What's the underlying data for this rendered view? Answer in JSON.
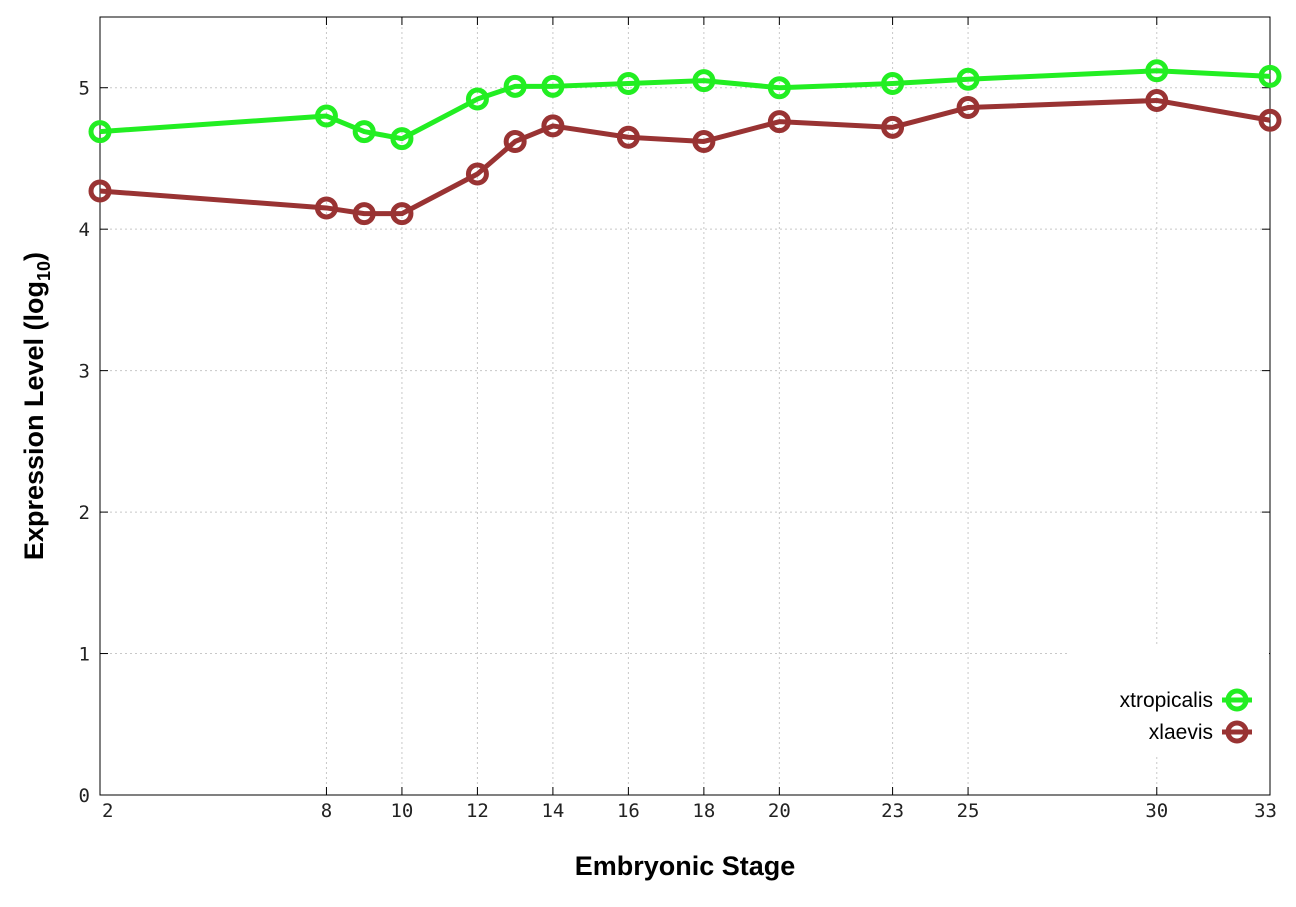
{
  "chart_data": {
    "type": "line",
    "xlabel": "Embryonic Stage",
    "ylabel": {
      "main": "Expression Level (log",
      "subscript": "10",
      "close": ")"
    },
    "x_ticks": [
      2,
      8,
      10,
      12,
      14,
      16,
      18,
      20,
      23,
      25,
      30,
      33
    ],
    "y_ticks": [
      0,
      1,
      2,
      3,
      4,
      5
    ],
    "xlim": [
      2,
      33
    ],
    "ylim": [
      0,
      5.5
    ],
    "grid": true,
    "legend_position": "bottom-right",
    "series": [
      {
        "name": "xtropicalis",
        "color": "#22ee22",
        "x": [
          2,
          8,
          9,
          10,
          12,
          13,
          14,
          16,
          18,
          20,
          23,
          25,
          30,
          33
        ],
        "y": [
          4.69,
          4.8,
          4.69,
          4.64,
          4.92,
          5.01,
          5.01,
          5.03,
          5.05,
          5.0,
          5.03,
          5.06,
          5.12,
          5.08
        ]
      },
      {
        "name": "xlaevis",
        "color": "#993333",
        "x": [
          2,
          8,
          9,
          10,
          12,
          13,
          14,
          16,
          18,
          20,
          23,
          25,
          30,
          33
        ],
        "y": [
          4.27,
          4.15,
          4.11,
          4.11,
          4.39,
          4.62,
          4.73,
          4.65,
          4.62,
          4.76,
          4.72,
          4.86,
          4.91,
          4.77
        ]
      }
    ]
  }
}
